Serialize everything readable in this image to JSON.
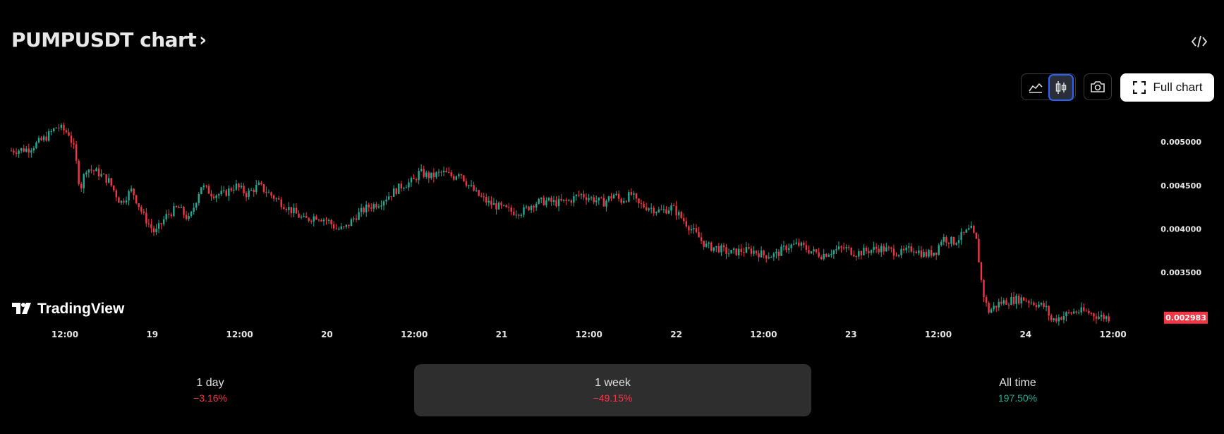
{
  "header": {
    "title": "PUMPUSDT chart",
    "chevron": "›",
    "embed_icon": "code-icon"
  },
  "toolbar": {
    "area_icon": "area-chart-icon",
    "candle_icon": "candlestick-icon",
    "snapshot_icon": "camera-icon",
    "full_chart_label": "Full chart",
    "full_chart_icon": "expand-icon",
    "selected_type": "candlestick"
  },
  "branding": {
    "label": "TradingView"
  },
  "chart_data": {
    "type": "candlestick",
    "symbol": "PUMPUSDT",
    "x_tick_labels": [
      "12:00",
      "19",
      "12:00",
      "20",
      "12:00",
      "21",
      "12:00",
      "22",
      "12:00",
      "23",
      "12:00",
      "24",
      "12:00"
    ],
    "y_tick_labels": [
      "0.005000",
      "0.004500",
      "0.004000",
      "0.003500"
    ],
    "y_ticks": [
      0.005,
      0.0045,
      0.004,
      0.0035
    ],
    "ylim": [
      0.0029,
      0.00535
    ],
    "last_price": "0.002983",
    "up_color": "#22ab94",
    "down_color": "#f23645",
    "close_path": [
      [
        0.0,
        0.0049
      ],
      [
        0.015,
        0.00492
      ],
      [
        0.03,
        0.00505
      ],
      [
        0.04,
        0.00518
      ],
      [
        0.05,
        0.0051
      ],
      [
        0.055,
        0.0049
      ],
      [
        0.06,
        0.00445
      ],
      [
        0.065,
        0.0047
      ],
      [
        0.075,
        0.00465
      ],
      [
        0.085,
        0.00455
      ],
      [
        0.095,
        0.0043
      ],
      [
        0.105,
        0.00445
      ],
      [
        0.115,
        0.00415
      ],
      [
        0.125,
        0.00395
      ],
      [
        0.135,
        0.00415
      ],
      [
        0.145,
        0.00425
      ],
      [
        0.155,
        0.0041
      ],
      [
        0.165,
        0.0045
      ],
      [
        0.175,
        0.0044
      ],
      [
        0.185,
        0.0044
      ],
      [
        0.195,
        0.0045
      ],
      [
        0.205,
        0.0044
      ],
      [
        0.215,
        0.0045
      ],
      [
        0.225,
        0.0044
      ],
      [
        0.235,
        0.0043
      ],
      [
        0.245,
        0.0042
      ],
      [
        0.255,
        0.0041
      ],
      [
        0.265,
        0.00415
      ],
      [
        0.275,
        0.0041
      ],
      [
        0.283,
        0.004
      ],
      [
        0.29,
        0.004
      ],
      [
        0.3,
        0.00415
      ],
      [
        0.31,
        0.00425
      ],
      [
        0.32,
        0.0043
      ],
      [
        0.33,
        0.0044
      ],
      [
        0.34,
        0.0045
      ],
      [
        0.35,
        0.00455
      ],
      [
        0.355,
        0.00465
      ],
      [
        0.365,
        0.0046
      ],
      [
        0.375,
        0.00465
      ],
      [
        0.385,
        0.0046
      ],
      [
        0.39,
        0.00467
      ],
      [
        0.395,
        0.00455
      ],
      [
        0.405,
        0.0044
      ],
      [
        0.415,
        0.0043
      ],
      [
        0.425,
        0.00425
      ],
      [
        0.435,
        0.0042
      ],
      [
        0.445,
        0.0042
      ],
      [
        0.455,
        0.0043
      ],
      [
        0.465,
        0.00432
      ],
      [
        0.475,
        0.0043
      ],
      [
        0.485,
        0.00432
      ],
      [
        0.495,
        0.0044
      ],
      [
        0.505,
        0.00435
      ],
      [
        0.515,
        0.0043
      ],
      [
        0.525,
        0.0044
      ],
      [
        0.53,
        0.00432
      ],
      [
        0.54,
        0.0044
      ],
      [
        0.545,
        0.00428
      ],
      [
        0.555,
        0.00425
      ],
      [
        0.565,
        0.0042
      ],
      [
        0.575,
        0.00425
      ],
      [
        0.585,
        0.0041
      ],
      [
        0.595,
        0.00395
      ],
      [
        0.605,
        0.0038
      ],
      [
        0.615,
        0.00378
      ],
      [
        0.625,
        0.00372
      ],
      [
        0.635,
        0.00375
      ],
      [
        0.645,
        0.00375
      ],
      [
        0.655,
        0.0037
      ],
      [
        0.665,
        0.0037
      ],
      [
        0.675,
        0.0038
      ],
      [
        0.685,
        0.00382
      ],
      [
        0.695,
        0.00375
      ],
      [
        0.705,
        0.0037
      ],
      [
        0.715,
        0.00375
      ],
      [
        0.725,
        0.00378
      ],
      [
        0.735,
        0.00372
      ],
      [
        0.745,
        0.00375
      ],
      [
        0.755,
        0.00378
      ],
      [
        0.765,
        0.00375
      ],
      [
        0.775,
        0.00372
      ],
      [
        0.785,
        0.00378
      ],
      [
        0.795,
        0.0037
      ],
      [
        0.805,
        0.00375
      ],
      [
        0.81,
        0.0039
      ],
      [
        0.82,
        0.00385
      ],
      [
        0.83,
        0.00395
      ],
      [
        0.835,
        0.004
      ],
      [
        0.84,
        0.00385
      ],
      [
        0.845,
        0.0033
      ],
      [
        0.85,
        0.00305
      ],
      [
        0.86,
        0.00315
      ],
      [
        0.87,
        0.00318
      ],
      [
        0.88,
        0.0032
      ],
      [
        0.89,
        0.00315
      ],
      [
        0.9,
        0.0031
      ],
      [
        0.905,
        0.00295
      ],
      [
        0.915,
        0.003
      ],
      [
        0.925,
        0.00305
      ],
      [
        0.935,
        0.00305
      ],
      [
        0.945,
        0.003
      ],
      [
        0.955,
        0.00298
      ]
    ]
  },
  "periods": [
    {
      "label": "1 day",
      "value": "−3.16%",
      "sign": "neg"
    },
    {
      "label": "1 week",
      "value": "−49.15%",
      "sign": "neg",
      "active": true
    },
    {
      "label": "All time",
      "value": "197.50%",
      "sign": "pos"
    }
  ]
}
